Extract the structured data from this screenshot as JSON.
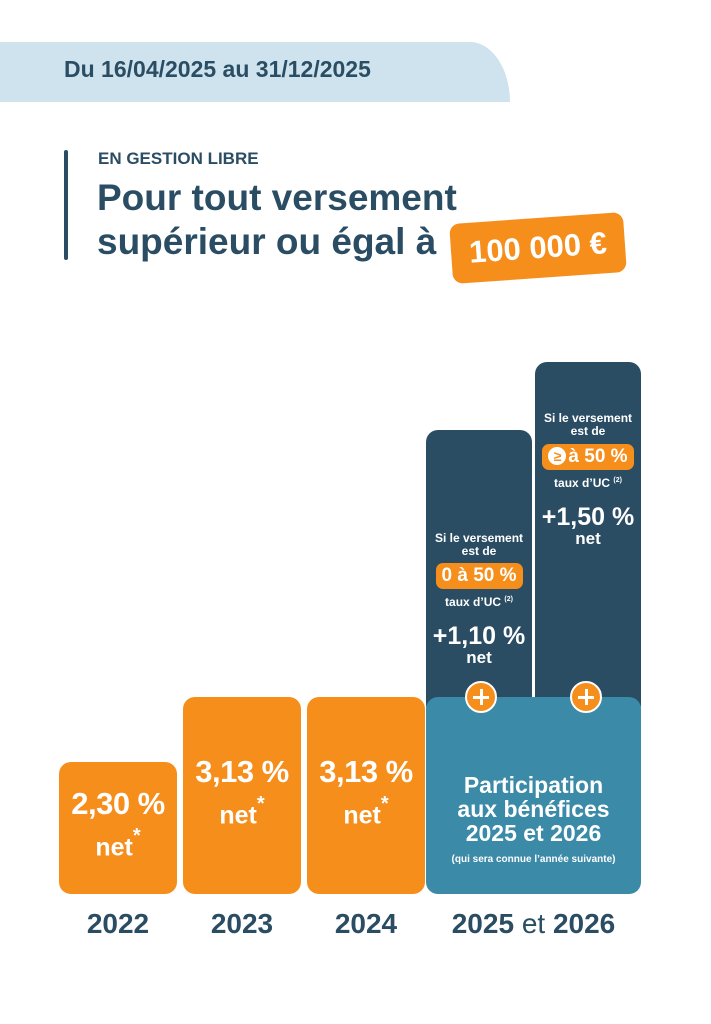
{
  "header": {
    "period": "Du 16/04/2025 au 31/12/2025",
    "kicker": "EN GESTION LIBRE",
    "headline_line1": "Pour tout versement",
    "headline_line2": "supérieur ou égal à",
    "amount": "100 000 €"
  },
  "colors": {
    "orange": "#f68e1c",
    "navy": "#2b4d64",
    "teal": "#3a8aa8",
    "banner": "#cfe3ee"
  },
  "chart_data": {
    "type": "bar",
    "categories": [
      "2022",
      "2023",
      "2024"
    ],
    "values": [
      2.3,
      3.13,
      3.13
    ],
    "value_labels": [
      "2,30 %",
      "3,13 %",
      "3,13 %"
    ],
    "unit_label": "net",
    "footnote_mark": "*",
    "last_category": {
      "year": "2025",
      "joiner": "et",
      "year2": "2026",
      "base": {
        "title_line1": "Participation",
        "title_line2": "aux bénéfices",
        "title_line3": "2025 et 2026",
        "subtitle": "(qui sera connue l’année suivante)"
      },
      "bonuses": [
        {
          "condition_line1": "Si le versement",
          "condition_line2": "est de",
          "range": "0 à 50 %",
          "range_icon": "",
          "uc_label": "taux d’UC",
          "uc_note": "(2)",
          "bonus": 1.1,
          "bonus_label": "+1,10 %",
          "bonus_unit": "net"
        },
        {
          "condition_line1": "Si le versement",
          "condition_line2": "est de",
          "range": "à 50 %",
          "range_icon": "≥",
          "uc_label": "taux d’UC",
          "uc_note": "(2)",
          "bonus": 1.5,
          "bonus_label": "+1,50 %",
          "bonus_unit": "net"
        }
      ]
    }
  }
}
